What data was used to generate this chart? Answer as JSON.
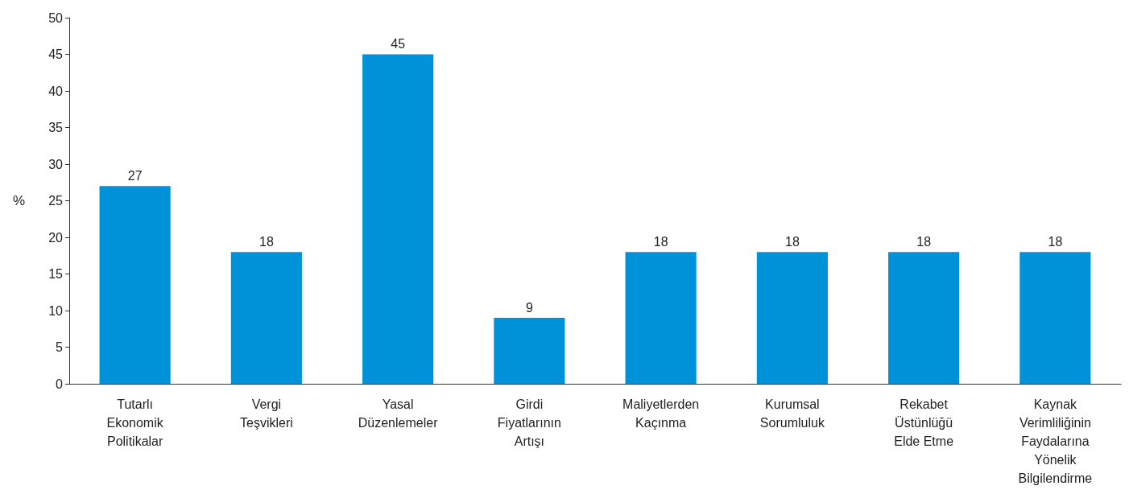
{
  "chart_data": {
    "type": "bar",
    "ylabel": "%",
    "categories": [
      "Tutarlı\nEkonomik\nPolitikalar",
      "Vergi\nTeşvikleri",
      "Yasal\nDüzenlemeler",
      "Girdi\nFiyatlarının\nArtışı",
      "Maliyetlerden\nKaçınma",
      "Kurumsal\nSorumluluk",
      "Rekabet\nÜstünlüğü\nElde Etme",
      "Kaynak\nVerimliliğinin\nFaydalarına\nYönelik\nBilgilendirme"
    ],
    "values": [
      27,
      18,
      45,
      9,
      18,
      18,
      18,
      18
    ],
    "color": "#0092d8",
    "ylim": [
      0,
      50
    ],
    "yticks": [
      0,
      5,
      10,
      15,
      20,
      25,
      30,
      35,
      40,
      45,
      50
    ],
    "data_labels": true
  }
}
